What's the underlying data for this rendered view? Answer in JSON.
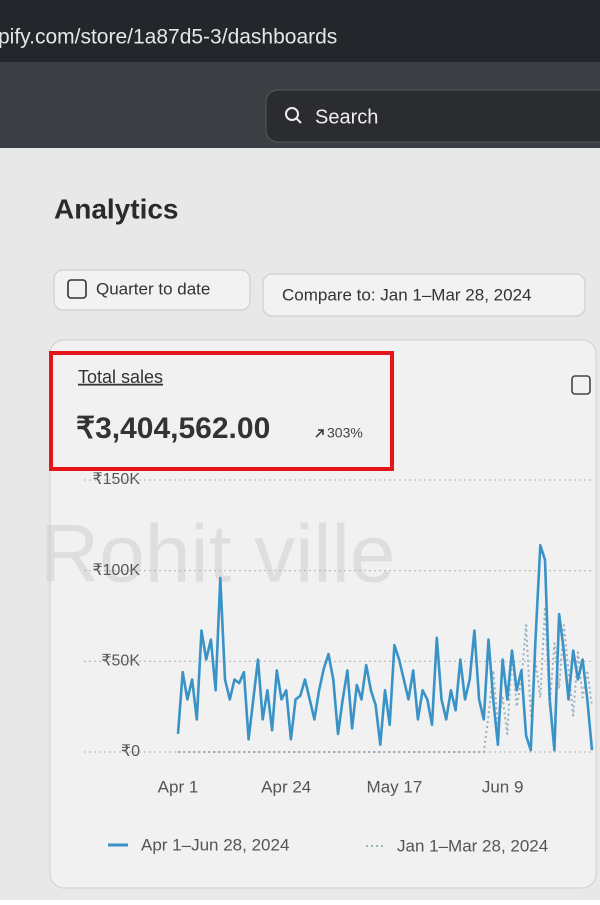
{
  "url": "pify.com/store/1a87d5-3/dashboards",
  "search": "Search",
  "title": "Analytics",
  "date_button": "Quarter to date",
  "compare_button": "Compare to: Jan 1–Mar 28, 2024",
  "watermark": "Rohit ville",
  "metric": {
    "label": "Total sales",
    "value": "₹3,404,562.00",
    "change": "303%"
  },
  "chart_data": {
    "type": "line",
    "categories": [
      "Apr 1",
      null,
      null,
      null,
      null,
      null,
      null,
      null,
      null,
      null,
      null,
      null,
      null,
      null,
      null,
      null,
      null,
      null,
      null,
      null,
      null,
      null,
      null,
      "Apr 24",
      null,
      null,
      null,
      null,
      null,
      null,
      null,
      null,
      null,
      null,
      null,
      null,
      null,
      null,
      null,
      null,
      null,
      null,
      null,
      null,
      null,
      null,
      "May 17",
      null,
      null,
      null,
      null,
      null,
      null,
      null,
      null,
      null,
      null,
      null,
      null,
      null,
      null,
      null,
      null,
      null,
      null,
      null,
      null,
      null,
      null,
      "Jun 9",
      null,
      null,
      null,
      null,
      null,
      null,
      null,
      null,
      null,
      null,
      null,
      null,
      null,
      null,
      null,
      null,
      null,
      null,
      null
    ],
    "series": [
      {
        "name": "Apr 1–Jun 28, 2024",
        "color": "#3a93c6",
        "style": "solid",
        "values": [
          10000,
          44000,
          29000,
          40000,
          18000,
          67000,
          51000,
          62000,
          34000,
          96000,
          40000,
          29000,
          40000,
          38000,
          44000,
          7000,
          29000,
          51000,
          18000,
          34000,
          12000,
          45000,
          29000,
          34000,
          7000,
          29000,
          31000,
          40000,
          29000,
          18000,
          34000,
          46000,
          54000,
          40000,
          10000,
          29000,
          45000,
          13000,
          37000,
          29000,
          48000,
          34000,
          26000,
          4000,
          34000,
          15000,
          59000,
          51000,
          40000,
          29000,
          45000,
          18000,
          34000,
          29000,
          15000,
          63000,
          29000,
          18000,
          34000,
          23000,
          51000,
          29000,
          40000,
          67000,
          29000,
          18000,
          62000,
          29000,
          4000,
          51000,
          29000,
          56000,
          34000,
          45000,
          9000,
          1000,
          62000,
          114000,
          106000,
          29000,
          1000,
          76000,
          56000,
          29000,
          56000,
          40000,
          51000,
          29000,
          1000
        ]
      },
      {
        "name": "Jan 1–Mar 28, 2024",
        "color": "#9ab0bd",
        "style": "dotted",
        "values": [
          0,
          0,
          0,
          0,
          0,
          0,
          0,
          0,
          0,
          0,
          0,
          0,
          0,
          0,
          0,
          0,
          0,
          0,
          0,
          0,
          0,
          0,
          0,
          0,
          0,
          0,
          0,
          0,
          0,
          0,
          0,
          0,
          0,
          0,
          0,
          0,
          0,
          0,
          0,
          0,
          0,
          0,
          0,
          0,
          0,
          0,
          0,
          0,
          0,
          0,
          0,
          0,
          0,
          0,
          0,
          0,
          0,
          0,
          0,
          0,
          0,
          0,
          0,
          0,
          0,
          0,
          20000,
          45000,
          15000,
          30000,
          10000,
          55000,
          25000,
          40000,
          70000,
          20000,
          50000,
          30000,
          80000,
          25000,
          60000,
          35000,
          70000,
          45000,
          20000,
          55000,
          30000,
          45000,
          25000
        ]
      }
    ],
    "ylim": [
      0,
      150000
    ],
    "yticks": [
      {
        "value": 0,
        "label": "₹0"
      },
      {
        "value": 50000,
        "label": "₹50K"
      },
      {
        "value": 100000,
        "label": "₹100K"
      },
      {
        "value": 150000,
        "label": "₹150K"
      }
    ],
    "grid": true
  }
}
